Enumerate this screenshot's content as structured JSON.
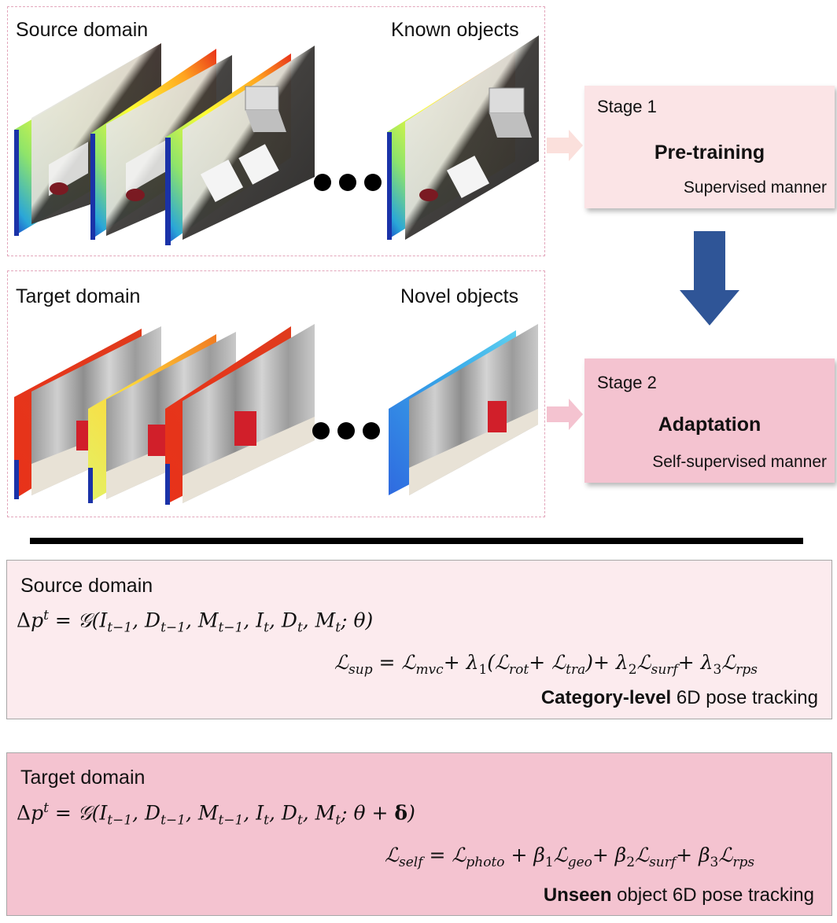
{
  "top": {
    "source_panel": {
      "left_label": "Source domain",
      "right_label": "Known objects"
    },
    "target_panel": {
      "left_label": "Target domain",
      "right_label": "Novel objects"
    }
  },
  "stages": [
    {
      "title": "Stage 1",
      "name": "Pre-training",
      "subtitle": "Supervised manner"
    },
    {
      "title": "Stage 2",
      "name": "Adaptation",
      "subtitle": "Self-supervised manner"
    }
  ],
  "equations": {
    "source": {
      "domain": "Source domain",
      "caption_bold": "Category-level",
      "caption_rest": " 6D pose tracking"
    },
    "target": {
      "domain": "Target domain",
      "caption_bold": "Unseen",
      "caption_rest": " object 6D pose tracking"
    }
  },
  "colors": {
    "dashed_border": "#e3a6bb",
    "stage1_fill": "#fbe4e6",
    "stage2_fill": "#f4c3d0",
    "source_eq_fill": "#fcebee",
    "target_eq_fill": "#f4c3d0",
    "flow_arrow": "#2f5597",
    "arrow_light": "#fbe0dc",
    "arrow_pink": "#f4c3d0"
  }
}
